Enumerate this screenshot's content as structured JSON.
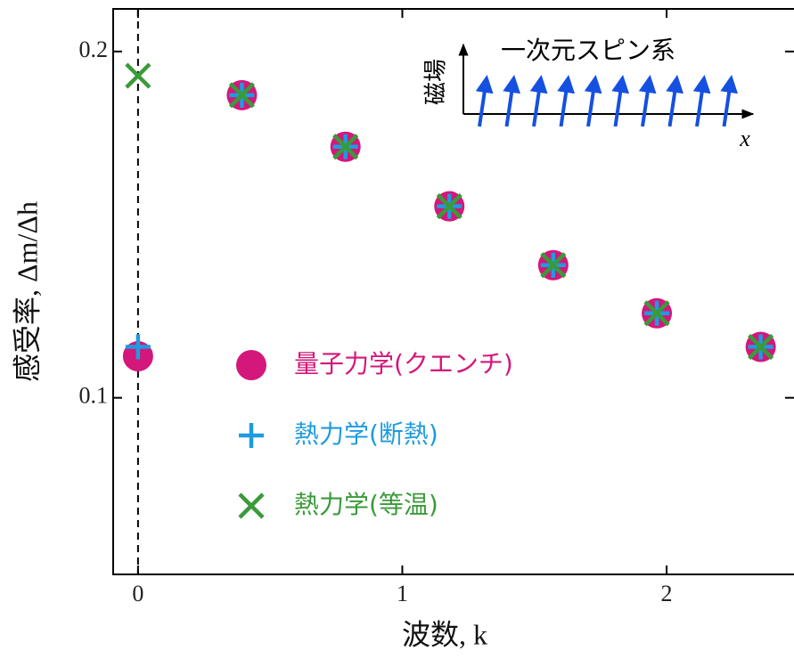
{
  "chart_data": {
    "type": "scatter",
    "xlabel": "波数, k",
    "ylabel": "感受率, Δm/Δh",
    "x": [
      0,
      0.393,
      0.785,
      1.178,
      1.571,
      1.963,
      2.356
    ],
    "series": [
      {
        "name": "量子力学(クエンチ)",
        "color": "#d4177a",
        "marker": "circle",
        "values": [
          0.112,
          0.1874,
          0.1725,
          0.1553,
          0.1383,
          0.1244,
          0.1147
        ]
      },
      {
        "name": "熱力学(断熱)",
        "color": "#1e9be0",
        "marker": "plus",
        "values": [
          0.1147,
          0.1874,
          0.1725,
          0.1553,
          0.1383,
          0.1244,
          0.1147
        ]
      },
      {
        "name": "熱力学(等温)",
        "color": "#3a9a3a",
        "marker": "x",
        "values": [
          0.193,
          0.1874,
          0.1725,
          0.1553,
          0.1383,
          0.1244,
          0.1147
        ]
      }
    ],
    "xlim": [
      -0.094,
      2.482
    ],
    "ylim": [
      0.049,
      0.2123
    ],
    "xticks": [
      0,
      1,
      2
    ],
    "yticks": [
      0.1,
      0.2
    ],
    "inset": {
      "title": "一次元スピン系",
      "ylabel": "磁場",
      "xlabel": "x"
    }
  }
}
